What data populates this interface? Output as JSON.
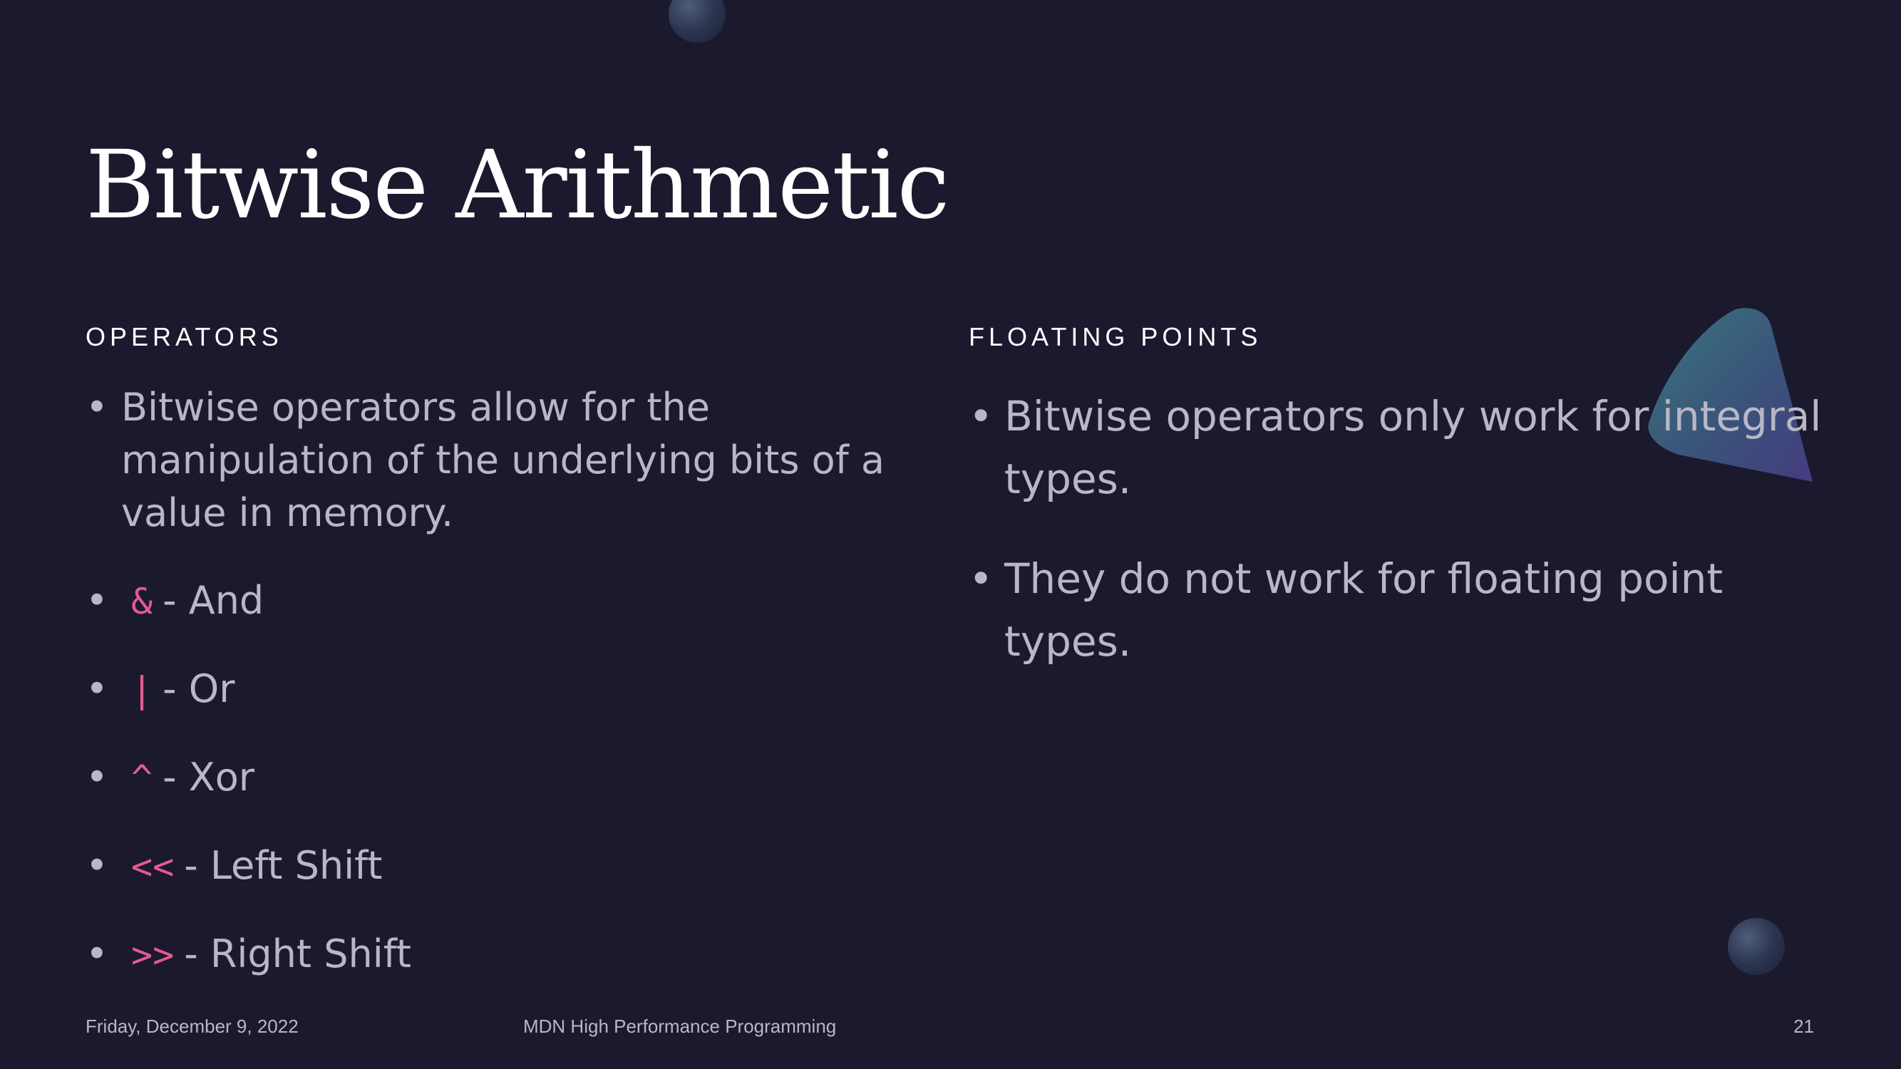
{
  "slide": {
    "title": "Bitwise Arithmetic",
    "left_column": {
      "heading": "OPERATORS",
      "intro": "Bitwise operators allow for the manipulation of the underlying bits of a value in memory.",
      "operators": [
        {
          "symbol": "&",
          "label": "- And"
        },
        {
          "symbol": "|",
          "label": "- Or"
        },
        {
          "symbol": "^",
          "label": "- Xor"
        },
        {
          "symbol": "<<",
          "label": "- Left Shift"
        },
        {
          "symbol": ">>",
          "label": "- Right Shift"
        }
      ]
    },
    "right_column": {
      "heading": "FLOATING POINTS",
      "items": [
        "Bitwise operators only work for integral types.",
        "They do not work for floating point types."
      ]
    },
    "footer": {
      "date": "Friday, December 9, 2022",
      "presentation": "MDN High Performance Programming",
      "page_number": "21"
    },
    "bullet_glyph": "•"
  },
  "colors": {
    "background": "#1b192d",
    "title": "#ffffff",
    "body_text": "#b9b7c6",
    "code_accent": "#e45b8f"
  }
}
